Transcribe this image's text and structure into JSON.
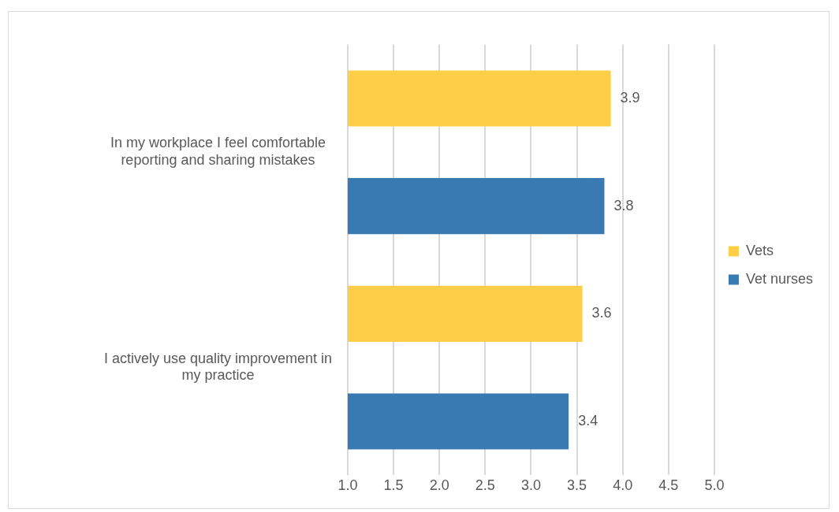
{
  "chart_data": {
    "type": "bar",
    "orientation": "horizontal",
    "categories": [
      "In my workplace I feel comfortable reporting and sharing mistakes",
      "I actively use quality improvement in my practice"
    ],
    "series": [
      {
        "name": "Vets",
        "color": "#fece48",
        "values": [
          3.87,
          3.56
        ],
        "value_labels": [
          "3.9",
          "3.6"
        ]
      },
      {
        "name": "Vet nurses",
        "color": "#3a7ab3",
        "values": [
          3.8,
          3.41
        ],
        "value_labels": [
          "3.8",
          "3.4"
        ]
      }
    ],
    "xlim": [
      1,
      5
    ],
    "xticks": [
      {
        "value": 1,
        "label": "1.0"
      },
      {
        "value": 1.5,
        "label": "1.5"
      },
      {
        "value": 2,
        "label": "2.0"
      },
      {
        "value": 2.5,
        "label": "2.5"
      },
      {
        "value": 3,
        "label": "3.0"
      },
      {
        "value": 3.5,
        "label": "3.5"
      },
      {
        "value": 4,
        "label": "4.0"
      },
      {
        "value": 4.5,
        "label": "4.5"
      },
      {
        "value": 5,
        "label": "5.0"
      }
    ],
    "grid": "x",
    "legend": "right"
  }
}
